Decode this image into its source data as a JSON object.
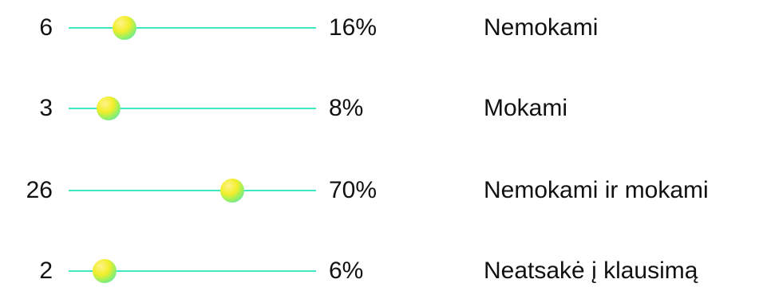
{
  "chart_data": {
    "type": "bar",
    "categories": [
      "Nemokami",
      "Mokami",
      "Nemokami ir mokami",
      "Neatsakė į klausimą"
    ],
    "values": [
      6,
      3,
      26,
      2
    ],
    "percent_labels": [
      "16%",
      "8%",
      "70%",
      "6%"
    ],
    "percent_values": [
      16,
      8,
      70,
      6
    ],
    "xlim": [
      0,
      100
    ],
    "colors": {
      "track": "#3fe8bf",
      "knob_top": "#f2ee2a",
      "knob_bottom": "#35e0d8"
    }
  }
}
